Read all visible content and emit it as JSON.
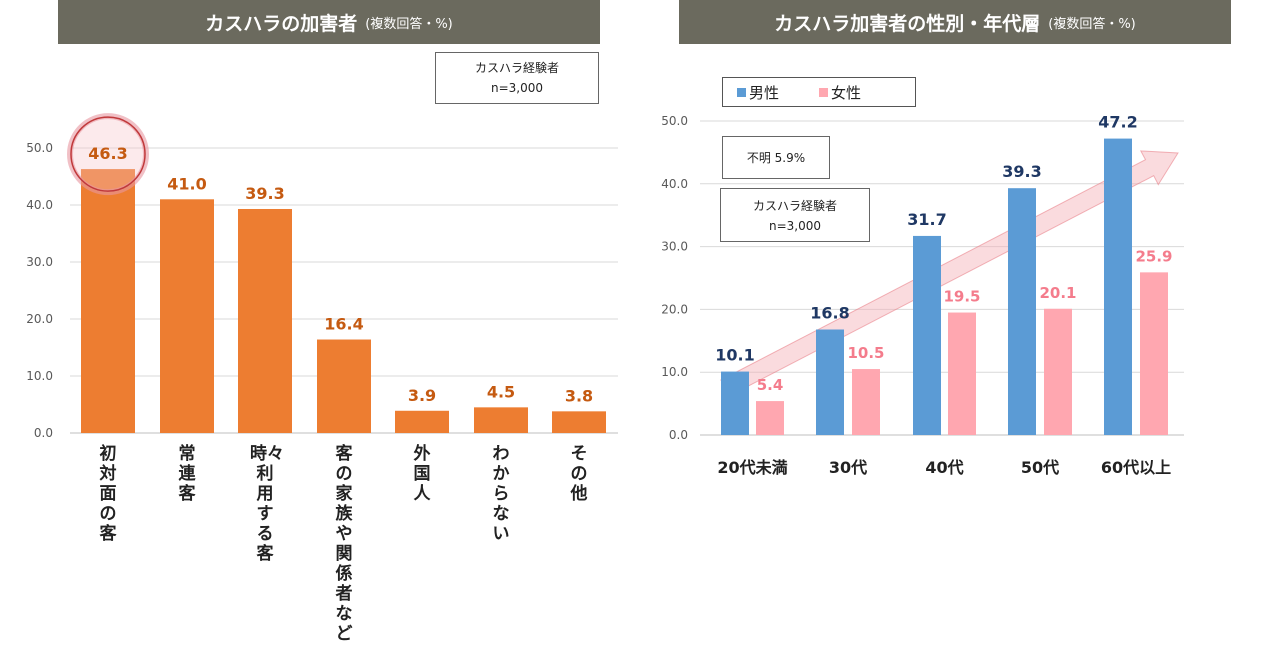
{
  "left_chart": {
    "title": "カスハラの加害者",
    "title_note": "(複数回答・%)",
    "sample_label": "カスハラ経験者",
    "sample_n": "n=3,000"
  },
  "right_chart": {
    "title": "カスハラ加害者の性別・年代層",
    "title_note": "(複数回答・%)",
    "legend_male": "男性",
    "legend_female": "女性",
    "unknown_label": "不明 5.9%",
    "sample_label": "カスハラ経験者",
    "sample_n": "n=3,000"
  },
  "colors": {
    "orange": "#ed7d31",
    "orange_text": "#c55a11",
    "blue": "#5b9bd5",
    "blue_text": "#1f3864",
    "pink": "#ffa7b0",
    "pink_text": "#f47c8c",
    "banner": "#6b6a5e",
    "highlight_circle": "#c0393b"
  },
  "chart_data": [
    {
      "type": "bar",
      "title": "カスハラの加害者",
      "categories": [
        "初対面の客",
        "常連客",
        "時々利用する客",
        "客の家族や関係者など",
        "外国人",
        "わからない",
        "その他"
      ],
      "values": [
        46.3,
        41.0,
        39.3,
        16.4,
        3.9,
        4.5,
        3.8
      ],
      "value_labels": [
        "46.3",
        "41.0",
        "39.3",
        "16.4",
        "3.9",
        "4.5",
        "3.8"
      ],
      "yticks": [
        "0.0",
        "10.0",
        "20.0",
        "30.0",
        "40.0",
        "50.0"
      ],
      "ylim": [
        0,
        50
      ],
      "highlight_index": 0
    },
    {
      "type": "bar",
      "title": "カスハラ加害者の性別・年代層",
      "categories": [
        "20代未満",
        "30代",
        "40代",
        "50代",
        "60代以上"
      ],
      "series": [
        {
          "name": "男性",
          "values": [
            10.1,
            16.8,
            31.7,
            39.3,
            47.2
          ],
          "labels": [
            "10.1",
            "16.8",
            "31.7",
            "39.3",
            "47.2"
          ]
        },
        {
          "name": "女性",
          "values": [
            5.4,
            10.5,
            19.5,
            20.1,
            25.9
          ],
          "labels": [
            "5.4",
            "10.5",
            "19.5",
            "20.1",
            "25.9"
          ]
        }
      ],
      "yticks": [
        "0.0",
        "10.0",
        "20.0",
        "30.0",
        "40.0",
        "50.0"
      ],
      "ylim": [
        0,
        50
      ]
    }
  ]
}
